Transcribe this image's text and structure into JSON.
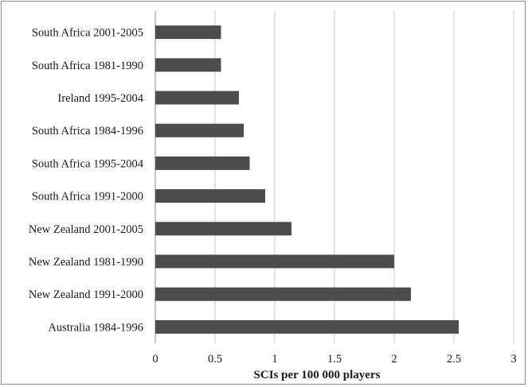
{
  "chart_data": {
    "type": "bar",
    "orientation": "horizontal",
    "categories": [
      "South Africa 2001-2005",
      "South Africa 1981-1990",
      "Ireland 1995-2004",
      "South Africa 1984-1996",
      "South Africa 1995-2004",
      "South Africa 1991-2000",
      "New Zealand 2001-2005",
      "New Zealand 1981-1990",
      "New Zealand 1991-2000",
      "Australia 1984-1996"
    ],
    "values": [
      0.55,
      0.55,
      0.7,
      0.74,
      0.79,
      0.92,
      1.14,
      2.0,
      2.14,
      2.54
    ],
    "xlabel": "SCIs per 100 000 players",
    "ylabel": "",
    "title": "",
    "xlim": [
      0,
      3
    ],
    "xticks": [
      0,
      0.5,
      1,
      1.5,
      2,
      2.5,
      3
    ],
    "xtick_labels": [
      "0",
      "0.5",
      "1",
      "1.5",
      "2",
      "2.5",
      "3"
    ],
    "grid": "vertical",
    "bar_color": "#4d4d4d",
    "grid_color": "#c8c8c8"
  }
}
